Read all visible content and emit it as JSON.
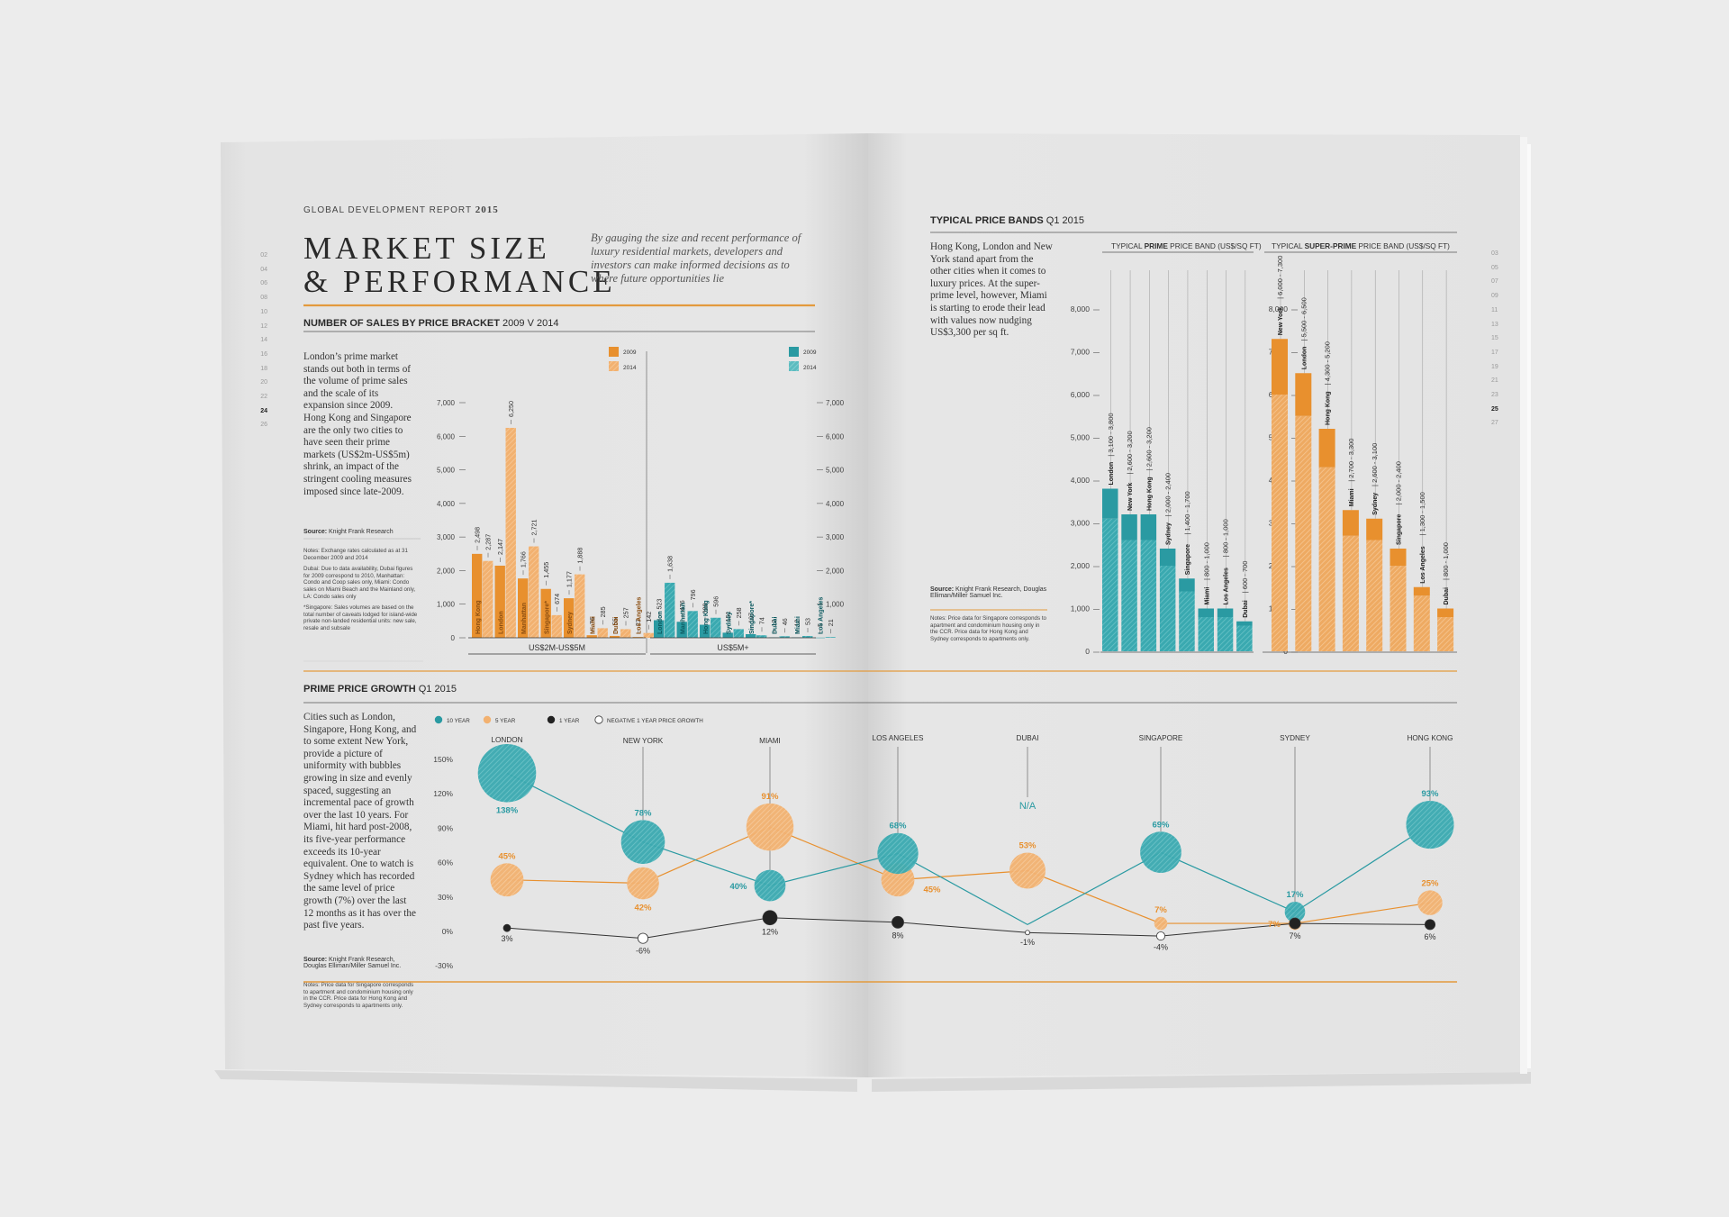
{
  "header": {
    "report": "GLOBAL DEVELOPMENT REPORT",
    "year": "2015"
  },
  "title": {
    "line1": "MARKET SIZE",
    "line2": "& PERFORMANCE"
  },
  "intro": "By gauging the size and recent performance of luxury residential markets, developers and investors can make informed decisions as to where future opportunities lie",
  "left_page_numbers": [
    "02",
    "04",
    "06",
    "08",
    "10",
    "12",
    "14",
    "16",
    "18",
    "20",
    "22",
    "24",
    "26"
  ],
  "right_page_numbers": [
    "03",
    "05",
    "07",
    "09",
    "11",
    "13",
    "15",
    "17",
    "19",
    "21",
    "23",
    "25",
    "27"
  ],
  "current_left": "24",
  "current_right": "25",
  "sales": {
    "title": "NUMBER OF SALES BY PRICE BRACKET",
    "title_suffix": "2009 V 2014",
    "text": "London’s prime market stands out both in terms of the volume of prime sales and the scale of its expansion since 2009. Hong Kong and Singapore are the only two cities to have seen their prime markets (US$2m-US$5m) shrink, an impact of the stringent cooling measures imposed since late-2009.",
    "source_label": "Source:",
    "source": "Knight Frank Research",
    "notes": [
      "Notes: Exchange rates calculated as at 31 December 2009 and 2014",
      "Dubai: Due to data availability, Dubai figures for 2009 correspond to 2010, Manhattan: Condo and Coop sales only, Miami: Condo sales on Miami Beach and the Mainland only, LA: Condo sales only",
      "*Singapore: Sales volumes are based on the total number of caveats lodged for island-wide private non-landed residential units: new sale, resale and subsale"
    ]
  },
  "prime_growth": {
    "title": "PRIME PRICE GROWTH",
    "title_suffix": "Q1 2015",
    "text": "Cities such as London, Singapore, Hong Kong, and to some extent New York, provide a picture of uniformity with bubbles growing in size and evenly spaced, suggesting an incremental pace of growth over the last 10 years. For Miami, hit hard post-2008, its five-year performance exceeds its 10-year equivalent. One to watch is Sydney which has recorded the same level of price growth (7%) over the last 12 months as it has over the past five years.",
    "source_label": "Source:",
    "source": "Knight Frank Research, Douglas Elliman/Miller Samuel Inc.",
    "notes": "Notes: Price data for Singapore corresponds to apartment and condominium housing only in the CCR. Price data for Hong Kong and Sydney corresponds to apartments only."
  },
  "bands": {
    "title": "TYPICAL PRICE BANDS",
    "title_suffix": "Q1 2015",
    "text": "Hong Kong, London and New York stand apart from the other cities when it comes to luxury prices. At the super-prime level, however, Miami is starting to erode their lead with values now nudging US$3,300 per sq ft.",
    "source_label": "Source:",
    "source": "Knight Frank Research, Douglas Elliman/Miller Samuel Inc.",
    "notes": "Notes: Price data for Singapore corresponds to apartment and condominium housing only in the CCR. Price data for Hong Kong and Sydney corresponds to apartments only."
  },
  "colors": {
    "orange": "#e8902e",
    "orange_light": "#f2b170",
    "teal": "#2a9aa2",
    "teal_light": "#5cbcc0",
    "black": "#222222",
    "rule": "#e39a3d"
  },
  "chart_data": [
    {
      "id": "sales",
      "type": "bar",
      "title": "NUMBER OF SALES BY PRICE BRACKET 2009 V 2014",
      "ylim": [
        0,
        7000
      ],
      "yticks": [
        "0",
        "1,000",
        "2,000",
        "3,000",
        "4,000",
        "5,000",
        "6,000",
        "7,000"
      ],
      "legend_left": [
        "2009",
        "2014"
      ],
      "legend_right": [
        "2009",
        "2014"
      ],
      "groups": [
        {
          "label": "US$2M-US$5M",
          "bars": [
            {
              "city": "Hong Kong",
              "values": [
                2498,
                2287
              ],
              "labels": [
                "2,498",
                "2,287"
              ]
            },
            {
              "city": "London",
              "values": [
                2147,
                6250
              ],
              "labels": [
                "2,147",
                "6,250"
              ]
            },
            {
              "city": "Manhattan",
              "values": [
                1766,
                2721
              ],
              "labels": [
                "1,766",
                "2,721"
              ]
            },
            {
              "city": "Singapore*",
              "values": [
                1455,
                674
              ],
              "labels": [
                "1,455",
                "674"
              ]
            },
            {
              "city": "Sydney",
              "values": [
                1177,
                1888
              ],
              "labels": [
                "1,177",
                "1,888"
              ]
            },
            {
              "city": "Miami",
              "values": [
                76,
                285
              ],
              "labels": [
                "76",
                "285"
              ]
            },
            {
              "city": "Dubai",
              "values": [
                55,
                257
              ],
              "labels": [
                "55",
                "257"
              ]
            },
            {
              "city": "Los Angeles",
              "values": [
                23,
                142
              ],
              "labels": [
                "23",
                "142"
              ]
            }
          ]
        },
        {
          "label": "US$5M+",
          "bars": [
            {
              "city": "London",
              "values": [
                523,
                1638
              ],
              "labels": [
                "523",
                "1,638"
              ]
            },
            {
              "city": "Manhattan",
              "values": [
                476,
                796
              ],
              "labels": [
                "476",
                "796"
              ]
            },
            {
              "city": "Hong Kong",
              "values": [
                388,
                596
              ],
              "labels": [
                "388",
                "596"
              ]
            },
            {
              "city": "Sydney",
              "values": [
                151,
                258
              ],
              "labels": [
                "151",
                "258"
              ]
            },
            {
              "city": "Singapore*",
              "values": [
                107,
                74
              ],
              "labels": [
                "107",
                "74"
              ]
            },
            {
              "city": "Dubai",
              "values": [
                12,
                46
              ],
              "labels": [
                "12",
                "46"
              ]
            },
            {
              "city": "Miami",
              "values": [
                12,
                53
              ],
              "labels": [
                "12",
                "53"
              ]
            },
            {
              "city": "Los Angeles",
              "values": [
                5,
                21
              ],
              "labels": [
                "5",
                "21"
              ]
            }
          ]
        }
      ]
    },
    {
      "id": "prime_growth",
      "type": "scatter",
      "title": "PRIME PRICE GROWTH Q1 2015",
      "ylim": [
        -30,
        150
      ],
      "yticks": [
        "-30%",
        "0%",
        "30%",
        "60%",
        "90%",
        "120%",
        "150%"
      ],
      "legend": [
        "10 YEAR",
        "5 YEAR",
        "1 YEAR",
        "NEGATIVE 1 YEAR PRICE GROWTH"
      ],
      "cities": [
        "LONDON",
        "NEW YORK",
        "MIAMI",
        "LOS ANGELES",
        "DUBAI",
        "SINGAPORE",
        "SYDNEY",
        "HONG KONG"
      ],
      "series": [
        {
          "name": "10 YEAR",
          "values": [
            138,
            78,
            40,
            68,
            null,
            69,
            17,
            93
          ],
          "labels": [
            "138%",
            "78%",
            "40%",
            "68%",
            "N/A",
            "69%",
            "17%",
            "93%"
          ]
        },
        {
          "name": "5 YEAR",
          "values": [
            45,
            42,
            91,
            45,
            53,
            7,
            7,
            25
          ],
          "labels": [
            "45%",
            "42%",
            "91%",
            "45%",
            "53%",
            "7%",
            "7%",
            "25%"
          ]
        },
        {
          "name": "1 YEAR",
          "values": [
            3,
            -6,
            12,
            8,
            -1,
            -4,
            7,
            6
          ],
          "labels": [
            "3%",
            "-6%",
            "12%",
            "8%",
            "-1%",
            "-4%",
            "7%",
            "6%"
          ]
        }
      ]
    },
    {
      "id": "bands",
      "type": "bar",
      "title": "TYPICAL PRICE BANDS Q1 2015",
      "ylim": [
        0,
        8000
      ],
      "yticks": [
        "0",
        "1,000",
        "2,000",
        "3,000",
        "4,000",
        "5,000",
        "6,000",
        "7,000",
        "8,000"
      ],
      "panels": [
        {
          "title_pre": "TYPICAL ",
          "title_bold": "PRIME",
          "title_post": " PRICE BAND (US$/SQ FT)",
          "bars": [
            {
              "city": "London",
              "low": 3100,
              "high": 3800,
              "label": "3,100 - 3,800"
            },
            {
              "city": "New York",
              "low": 2600,
              "high": 3200,
              "label": "2,600 - 3,200"
            },
            {
              "city": "Hong Kong",
              "low": 2600,
              "high": 3200,
              "label": "2,600 - 3,200"
            },
            {
              "city": "Sydney",
              "low": 2000,
              "high": 2400,
              "label": "2,000 - 2,400"
            },
            {
              "city": "Singapore",
              "low": 1400,
              "high": 1700,
              "label": "1,400 - 1,700"
            },
            {
              "city": "Miami",
              "low": 800,
              "high": 1000,
              "label": "800 - 1,000"
            },
            {
              "city": "Los Angeles",
              "low": 800,
              "high": 1000,
              "label": "800 - 1,000"
            },
            {
              "city": "Dubai",
              "low": 600,
              "high": 700,
              "label": "600 - 700"
            }
          ]
        },
        {
          "title_pre": "TYPICAL ",
          "title_bold": "SUPER-PRIME",
          "title_post": " PRICE BAND (US$/SQ FT)",
          "bars": [
            {
              "city": "New York",
              "low": 6000,
              "high": 7300,
              "label": "6,000 - 7,300"
            },
            {
              "city": "London",
              "low": 5500,
              "high": 6500,
              "label": "5,500 - 6,500"
            },
            {
              "city": "Hong Kong",
              "low": 4300,
              "high": 5200,
              "label": "4,300 - 5,200"
            },
            {
              "city": "Miami",
              "low": 2700,
              "high": 3300,
              "label": "2,700 - 3,300"
            },
            {
              "city": "Sydney",
              "low": 2600,
              "high": 3100,
              "label": "2,600 - 3,100"
            },
            {
              "city": "Singapore",
              "low": 2000,
              "high": 2400,
              "label": "2,000 - 2,400"
            },
            {
              "city": "Los Angeles",
              "low": 1300,
              "high": 1500,
              "label": "1,300 - 1,500"
            },
            {
              "city": "Dubai",
              "low": 800,
              "high": 1000,
              "label": "800 - 1,000"
            }
          ]
        }
      ]
    }
  ]
}
